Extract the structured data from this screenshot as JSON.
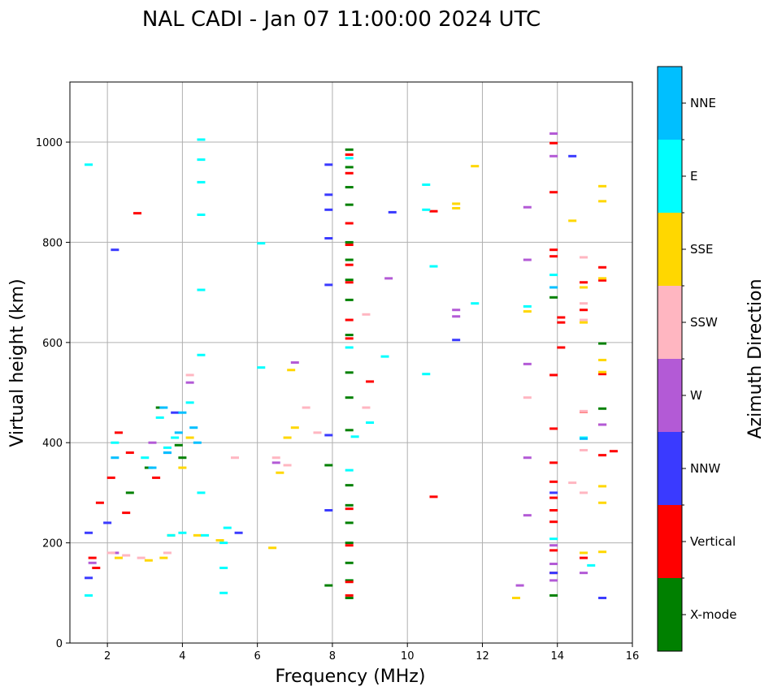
{
  "chart_data": {
    "type": "scatter",
    "title": "NAL CADI - Jan 07 11:00:00 2024 UTC",
    "xlabel": "Frequency (MHz)",
    "ylabel": "Virtual height (km)",
    "xlim": [
      1,
      16
    ],
    "ylim": [
      0,
      1120
    ],
    "xticks": [
      "2",
      "4",
      "6",
      "8",
      "10",
      "12",
      "14",
      "16"
    ],
    "yticks": [
      "0",
      "200",
      "400",
      "600",
      "800",
      "1000"
    ],
    "xtick_values": [
      2,
      4,
      6,
      8,
      10,
      12,
      14,
      16
    ],
    "ytick_values": [
      0,
      200,
      400,
      600,
      800,
      1000
    ],
    "grid": true,
    "colorbar": {
      "label": "Azimuth Direction",
      "categories": [
        "X-mode",
        "Vertical",
        "NNW",
        "W",
        "SSW",
        "SSE",
        "E",
        "NNE"
      ],
      "colors": [
        "#008000",
        "#ff0000",
        "#3a3aff",
        "#b35ad6",
        "#ffb6c1",
        "#ffd700",
        "#00ffff",
        "#00bfff"
      ]
    },
    "series": [
      {
        "name": "X-mode",
        "points": [
          [
            8.45,
            985
          ],
          [
            8.45,
            950
          ],
          [
            8.45,
            910
          ],
          [
            8.45,
            875
          ],
          [
            8.45,
            800
          ],
          [
            8.45,
            765
          ],
          [
            8.45,
            725
          ],
          [
            8.45,
            685
          ],
          [
            8.45,
            615
          ],
          [
            8.45,
            540
          ],
          [
            8.45,
            490
          ],
          [
            8.45,
            425
          ],
          [
            8.45,
            315
          ],
          [
            8.45,
            275
          ],
          [
            8.45,
            240
          ],
          [
            8.45,
            200
          ],
          [
            8.45,
            160
          ],
          [
            8.45,
            125
          ],
          [
            8.45,
            90
          ],
          [
            7.9,
            355
          ],
          [
            7.9,
            115
          ],
          [
            13.9,
            690
          ],
          [
            13.9,
            95
          ],
          [
            15.2,
            598
          ],
          [
            15.2,
            468
          ],
          [
            4.0,
            370
          ],
          [
            3.9,
            395
          ],
          [
            3.4,
            470
          ],
          [
            2.6,
            300
          ],
          [
            3.1,
            350
          ]
        ]
      },
      {
        "name": "Vertical",
        "points": [
          [
            8.45,
            975
          ],
          [
            8.45,
            938
          ],
          [
            8.45,
            838
          ],
          [
            8.45,
            795
          ],
          [
            8.45,
            755
          ],
          [
            8.45,
            720
          ],
          [
            8.45,
            645
          ],
          [
            8.45,
            608
          ],
          [
            8.45,
            268
          ],
          [
            8.45,
            195
          ],
          [
            8.45,
            122
          ],
          [
            8.45,
            95
          ],
          [
            9.0,
            522
          ],
          [
            10.7,
            862
          ],
          [
            10.7,
            292
          ],
          [
            13.9,
            998
          ],
          [
            13.9,
            900
          ],
          [
            13.9,
            785
          ],
          [
            13.9,
            772
          ],
          [
            13.9,
            535
          ],
          [
            13.9,
            428
          ],
          [
            13.9,
            360
          ],
          [
            13.9,
            322
          ],
          [
            13.9,
            290
          ],
          [
            13.9,
            265
          ],
          [
            13.9,
            242
          ],
          [
            13.9,
            185
          ],
          [
            13.9,
            140
          ],
          [
            14.1,
            650
          ],
          [
            14.1,
            640
          ],
          [
            14.1,
            590
          ],
          [
            14.7,
            720
          ],
          [
            14.7,
            665
          ],
          [
            14.7,
            462
          ],
          [
            14.7,
            170
          ],
          [
            15.2,
            750
          ],
          [
            15.2,
            724
          ],
          [
            15.2,
            537
          ],
          [
            15.2,
            436
          ],
          [
            15.2,
            375
          ],
          [
            15.5,
            383
          ],
          [
            2.8,
            858
          ],
          [
            1.8,
            280
          ],
          [
            2.1,
            330
          ],
          [
            2.3,
            420
          ],
          [
            2.5,
            260
          ],
          [
            2.6,
            380
          ],
          [
            1.7,
            150
          ],
          [
            1.6,
            170
          ],
          [
            3.3,
            330
          ]
        ]
      },
      {
        "name": "NNW",
        "points": [
          [
            2.2,
            785
          ],
          [
            7.9,
            955
          ],
          [
            7.9,
            895
          ],
          [
            7.9,
            865
          ],
          [
            7.9,
            808
          ],
          [
            7.9,
            715
          ],
          [
            7.9,
            415
          ],
          [
            7.9,
            265
          ],
          [
            9.6,
            860
          ],
          [
            11.3,
            605
          ],
          [
            14.4,
            972
          ],
          [
            13.9,
            300
          ],
          [
            13.9,
            140
          ],
          [
            15.2,
            90
          ],
          [
            1.5,
            220
          ],
          [
            1.5,
            130
          ],
          [
            5.5,
            220
          ],
          [
            2.0,
            240
          ],
          [
            3.6,
            380
          ],
          [
            3.8,
            460
          ]
        ]
      },
      {
        "name": "W",
        "points": [
          [
            13.2,
            870
          ],
          [
            13.2,
            765
          ],
          [
            13.2,
            557
          ],
          [
            13.2,
            370
          ],
          [
            13.2,
            255
          ],
          [
            13.0,
            115
          ],
          [
            13.9,
            1017
          ],
          [
            13.9,
            972
          ],
          [
            13.9,
            195
          ],
          [
            13.9,
            158
          ],
          [
            13.9,
            125
          ],
          [
            14.7,
            140
          ],
          [
            15.2,
            436
          ],
          [
            11.3,
            665
          ],
          [
            11.3,
            652
          ],
          [
            9.5,
            728
          ],
          [
            7.0,
            560
          ],
          [
            6.5,
            360
          ],
          [
            1.6,
            160
          ],
          [
            3.2,
            400
          ],
          [
            4.2,
            520
          ],
          [
            2.2,
            180
          ]
        ]
      },
      {
        "name": "SSW",
        "points": [
          [
            13.2,
            490
          ],
          [
            14.7,
            770
          ],
          [
            14.7,
            678
          ],
          [
            14.7,
            645
          ],
          [
            14.4,
            320
          ],
          [
            14.7,
            385
          ],
          [
            14.7,
            463
          ],
          [
            14.7,
            300
          ],
          [
            8.9,
            656
          ],
          [
            8.9,
            470
          ],
          [
            6.5,
            370
          ],
          [
            6.8,
            355
          ],
          [
            7.3,
            470
          ],
          [
            7.6,
            420
          ],
          [
            2.1,
            180
          ],
          [
            2.5,
            175
          ],
          [
            3.6,
            180
          ],
          [
            4.2,
            535
          ],
          [
            5.4,
            370
          ],
          [
            2.9,
            170
          ]
        ]
      },
      {
        "name": "SSE",
        "points": [
          [
            11.3,
            877
          ],
          [
            11.3,
            868
          ],
          [
            11.8,
            952
          ],
          [
            13.2,
            662
          ],
          [
            12.9,
            90
          ],
          [
            14.4,
            843
          ],
          [
            14.7,
            710
          ],
          [
            14.7,
            640
          ],
          [
            14.7,
            180
          ],
          [
            15.2,
            912
          ],
          [
            15.2,
            882
          ],
          [
            15.2,
            728
          ],
          [
            15.2,
            565
          ],
          [
            15.2,
            541
          ],
          [
            15.2,
            313
          ],
          [
            15.2,
            280
          ],
          [
            15.2,
            182
          ],
          [
            6.6,
            340
          ],
          [
            6.8,
            410
          ],
          [
            7.0,
            430
          ],
          [
            6.4,
            190
          ],
          [
            3.5,
            170
          ],
          [
            3.1,
            165
          ],
          [
            4.2,
            410
          ],
          [
            4.4,
            215
          ],
          [
            5.0,
            205
          ],
          [
            2.3,
            170
          ],
          [
            3.7,
            215
          ],
          [
            4.0,
            350
          ],
          [
            6.9,
            545
          ]
        ]
      },
      {
        "name": "E",
        "points": [
          [
            1.5,
            955
          ],
          [
            4.5,
            1005
          ],
          [
            4.5,
            965
          ],
          [
            4.5,
            920
          ],
          [
            4.5,
            855
          ],
          [
            4.5,
            705
          ],
          [
            4.5,
            575
          ],
          [
            4.5,
            300
          ],
          [
            5.1,
            200
          ],
          [
            5.1,
            150
          ],
          [
            5.1,
            100
          ],
          [
            6.1,
            798
          ],
          [
            6.1,
            550
          ],
          [
            8.45,
            968
          ],
          [
            8.45,
            590
          ],
          [
            8.45,
            345
          ],
          [
            8.6,
            412
          ],
          [
            9.0,
            440
          ],
          [
            9.4,
            572
          ],
          [
            10.5,
            915
          ],
          [
            10.5,
            865
          ],
          [
            10.5,
            537
          ],
          [
            10.7,
            752
          ],
          [
            11.8,
            678
          ],
          [
            13.2,
            672
          ],
          [
            13.9,
            735
          ],
          [
            13.9,
            208
          ],
          [
            14.7,
            410
          ],
          [
            14.9,
            155
          ],
          [
            3.6,
            390
          ],
          [
            3.4,
            450
          ],
          [
            3.7,
            215
          ],
          [
            4.0,
            220
          ],
          [
            4.6,
            215
          ],
          [
            5.2,
            230
          ],
          [
            1.5,
            95
          ],
          [
            2.2,
            400
          ],
          [
            3.0,
            370
          ],
          [
            3.8,
            410
          ],
          [
            4.2,
            480
          ]
        ]
      },
      {
        "name": "NNE",
        "points": [
          [
            13.9,
            710
          ],
          [
            14.7,
            408
          ],
          [
            3.6,
            380
          ],
          [
            3.9,
            420
          ],
          [
            4.3,
            430
          ],
          [
            4.0,
            460
          ],
          [
            3.5,
            470
          ],
          [
            4.4,
            400
          ],
          [
            2.2,
            370
          ],
          [
            3.2,
            350
          ]
        ]
      }
    ]
  }
}
